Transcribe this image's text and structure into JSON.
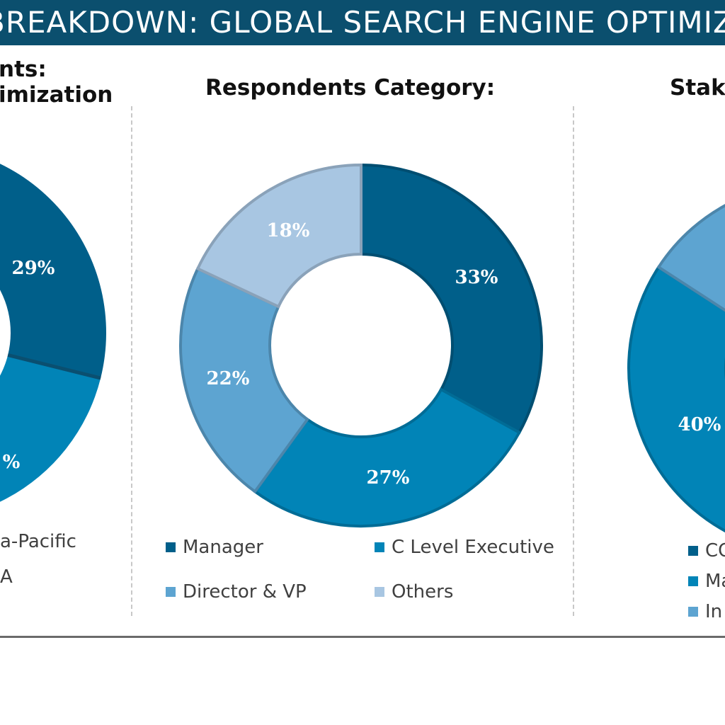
{
  "banner": {
    "title": "BREAKDOWN: GLOBAL SEARCH ENGINE OPTIMIZ"
  },
  "colors": {
    "dark_teal": "#005f8a",
    "mid_blue": "#0184b7",
    "light_blue": "#5da4d1",
    "pale_blue": "#a8c6e2",
    "banner_bg": "#0b4f6e"
  },
  "chart_data": [
    {
      "type": "pie",
      "title_lines": [
        "nts:",
        "imization"
      ],
      "slices": [
        {
          "label": "",
          "value": 29,
          "value_label": "29%",
          "color": "#005f8a"
        },
        {
          "label": "",
          "value": null,
          "value_label": "%",
          "color": "#0184b7"
        }
      ],
      "legend": [
        "a-Pacific",
        "A"
      ]
    },
    {
      "type": "pie",
      "title": "Respondents Category:",
      "slices": [
        {
          "label": "Manager",
          "value": 33,
          "value_label": "33%",
          "color": "#005f8a"
        },
        {
          "label": "C Level Executive",
          "value": 27,
          "value_label": "27%",
          "color": "#0184b7"
        },
        {
          "label": "Director & VP",
          "value": 22,
          "value_label": "22%",
          "color": "#5da4d1"
        },
        {
          "label": "Others",
          "value": 18,
          "value_label": "18%",
          "color": "#a8c6e2"
        }
      ],
      "legend": [
        "Manager",
        "C Level Executive",
        "Director & VP",
        "Others"
      ]
    },
    {
      "type": "pie",
      "title": "Stak",
      "slices": [
        {
          "label": "CO",
          "value": null,
          "value_label": "",
          "color": "#005f8a"
        },
        {
          "label": "Ma",
          "value": 40,
          "value_label": "40%",
          "color": "#0184b7"
        },
        {
          "label": "In",
          "value": null,
          "value_label": "",
          "color": "#5da4d1"
        }
      ],
      "legend": [
        "CO",
        "Ma",
        "In"
      ]
    }
  ]
}
